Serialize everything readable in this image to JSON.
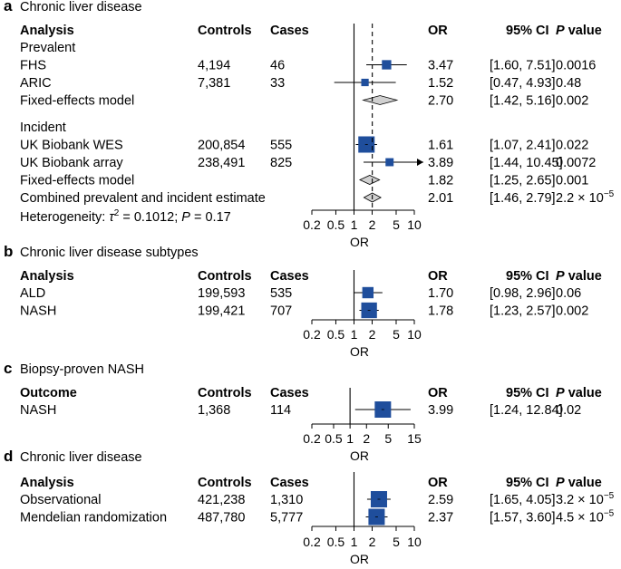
{
  "colors": {
    "marker": "#1f4e9c",
    "diamond": "#d0d0d0",
    "text": "#000000"
  },
  "hetero": {
    "prefix": "Heterogeneity: ",
    "tau": "τ",
    "sq": "2",
    "rest": " = 0.1012; ",
    "p": "P",
    "pval": " = 0.17"
  },
  "chart_data": [
    {
      "type": "forest",
      "panel": "a",
      "title": "Chronic liver disease",
      "headers": {
        "label": "Analysis",
        "controls": "Controls",
        "cases": "Cases",
        "or": "OR",
        "ci": "95% CI",
        "p": "P",
        "p_rest": " value"
      },
      "xscale": "log",
      "xlim": [
        0.2,
        10
      ],
      "ticks": [
        "0.2",
        "0.5",
        "1",
        "2",
        "5",
        "10"
      ],
      "xlabel": "OR",
      "reference": 1,
      "dashed": 2.01,
      "rows": [
        {
          "kind": "section",
          "label": "Prevalent"
        },
        {
          "kind": "study",
          "label": "FHS",
          "controls": "4,194",
          "cases": "46",
          "or": 3.47,
          "lo": 1.6,
          "hi": 7.51,
          "or_text": "3.47",
          "ci_text": "[1.60, 7.51]",
          "p_text": "0.0016",
          "weight": 0.45
        },
        {
          "kind": "study",
          "label": "ARIC",
          "controls": "7,381",
          "cases": "33",
          "or": 1.52,
          "lo": 0.47,
          "hi": 4.93,
          "or_text": "1.52",
          "ci_text": "[0.47, 4.93]",
          "p_text": "0.48",
          "weight": 0.3
        },
        {
          "kind": "pooled",
          "label": "Fixed-effects model",
          "or": 2.7,
          "lo": 1.42,
          "hi": 5.16,
          "or_text": "2.70",
          "ci_text": "[1.42, 5.16]",
          "p_text": "0.002"
        },
        {
          "kind": "gap"
        },
        {
          "kind": "section",
          "label": "Incident"
        },
        {
          "kind": "study",
          "label": "UK Biobank WES",
          "controls": "200,854",
          "cases": "555",
          "or": 1.61,
          "lo": 1.07,
          "hi": 2.41,
          "or_text": "1.61",
          "ci_text": "[1.07, 2.41]",
          "p_text": "0.022",
          "weight": 1.0
        },
        {
          "kind": "study",
          "label": "UK Biobank array",
          "controls": "238,491",
          "cases": "825",
          "or": 3.89,
          "lo": 1.44,
          "hi": 10.45,
          "or_text": "3.89",
          "ci_text": "[1.44, 10.45]",
          "p_text": "0.0072",
          "weight": 0.35,
          "arrow": true
        },
        {
          "kind": "pooled",
          "label": "Fixed-effects model",
          "or": 1.82,
          "lo": 1.25,
          "hi": 2.65,
          "or_text": "1.82",
          "ci_text": "[1.25, 2.65]",
          "p_text": "0.001"
        },
        {
          "kind": "pooled",
          "label": "Combined prevalent and incident estimate",
          "or": 2.01,
          "lo": 1.46,
          "hi": 2.79,
          "or_text": "2.01",
          "ci_text": "[1.46, 2.79]",
          "p_text": "2.2 × 10",
          "p_exp": "−5"
        }
      ]
    },
    {
      "type": "forest",
      "panel": "b",
      "title": "Chronic liver disease subtypes",
      "headers": {
        "label": "Analysis",
        "controls": "Controls",
        "cases": "Cases",
        "or": "OR",
        "ci": "95% CI",
        "p": "P",
        "p_rest": " value"
      },
      "xscale": "log",
      "xlim": [
        0.2,
        10
      ],
      "ticks": [
        "0.2",
        "0.5",
        "1",
        "2",
        "5",
        "10"
      ],
      "xlabel": "OR",
      "reference": 1,
      "rows": [
        {
          "kind": "study",
          "label": "ALD",
          "controls": "199,593",
          "cases": "535",
          "or": 1.7,
          "lo": 0.98,
          "hi": 2.96,
          "or_text": "1.70",
          "ci_text": "[0.98, 2.96]",
          "p_text": "0.06",
          "weight": 0.6
        },
        {
          "kind": "study",
          "label": "NASH",
          "controls": "199,421",
          "cases": "707",
          "or": 1.78,
          "lo": 1.23,
          "hi": 2.57,
          "or_text": "1.78",
          "ci_text": "[1.23, 2.57]",
          "p_text": "0.002",
          "weight": 0.95
        }
      ]
    },
    {
      "type": "forest",
      "panel": "c",
      "title": "Biopsy-proven NASH",
      "headers": {
        "label": "Outcome",
        "controls": "Controls",
        "cases": "Cases",
        "or": "OR",
        "ci": "95% CI",
        "p": "P",
        "p_rest": " value"
      },
      "xscale": "log",
      "xlim": [
        0.2,
        15
      ],
      "ticks": [
        "0.2",
        "0.5",
        "1",
        "2",
        "5",
        "15"
      ],
      "xlabel": "OR",
      "reference": 1,
      "rows": [
        {
          "kind": "study",
          "label": "NASH",
          "controls": "1,368",
          "cases": "114",
          "or": 3.99,
          "lo": 1.24,
          "hi": 12.84,
          "or_text": "3.99",
          "ci_text": "[1.24, 12.84]",
          "p_text": "0.02",
          "weight": 1.0
        }
      ]
    },
    {
      "type": "forest",
      "panel": "d",
      "title": "Chronic liver disease",
      "headers": {
        "label": "Analysis",
        "controls": "Controls",
        "cases": "Cases",
        "or": "OR",
        "ci": "95% CI",
        "p": "P",
        "p_rest": " value"
      },
      "xscale": "log",
      "xlim": [
        0.2,
        10
      ],
      "ticks": [
        "0.2",
        "0.5",
        "1",
        "2",
        "5",
        "10"
      ],
      "xlabel": "OR",
      "reference": 1,
      "rows": [
        {
          "kind": "study",
          "label": "Observational",
          "controls": "421,238",
          "cases": "1,310",
          "or": 2.59,
          "lo": 1.65,
          "hi": 4.05,
          "or_text": "2.59",
          "ci_text": "[1.65, 4.05]",
          "p_text": "3.2 × 10",
          "p_exp": "−5",
          "weight": 1.0
        },
        {
          "kind": "study",
          "label": "Mendelian randomization",
          "controls": "487,780",
          "cases": "5,777",
          "or": 2.37,
          "lo": 1.57,
          "hi": 3.6,
          "or_text": "2.37",
          "ci_text": "[1.57, 3.60]",
          "p_text": "4.5 × 10",
          "p_exp": "−5",
          "weight": 1.0
        }
      ]
    }
  ]
}
